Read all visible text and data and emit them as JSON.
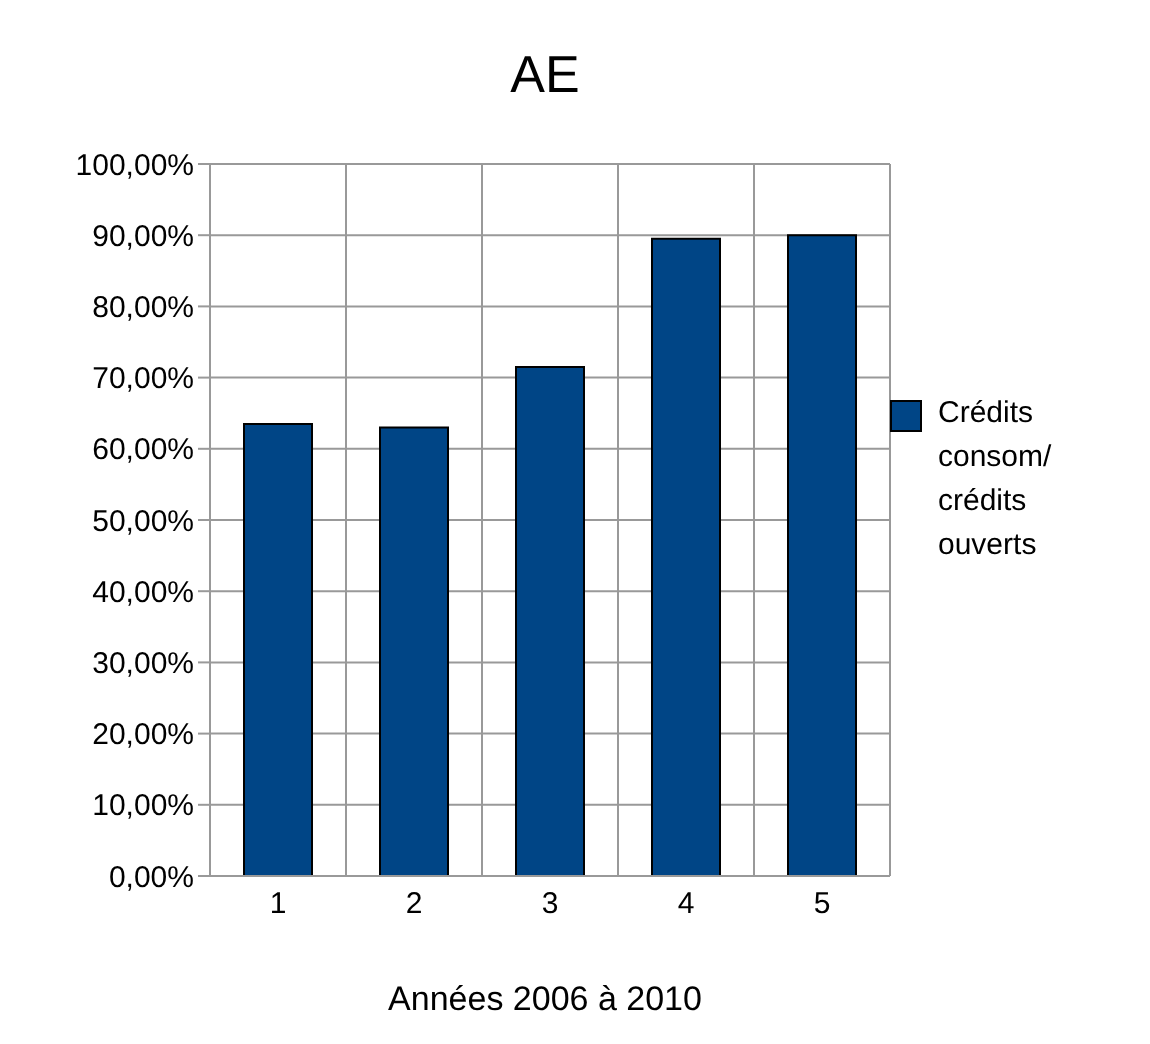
{
  "chart_data": {
    "type": "bar",
    "title": "AE",
    "xlabel": "Années 2006 à 2010",
    "categories": [
      "1",
      "2",
      "3",
      "4",
      "5"
    ],
    "series": [
      {
        "name": "Crédits consom/ crédits ouverts",
        "color": "#004586",
        "values": [
          63.5,
          63,
          71.5,
          89.5,
          90
        ]
      }
    ],
    "ylim": [
      0,
      100
    ],
    "yticks": [
      {
        "value": 0,
        "label": "0,00%"
      },
      {
        "value": 10,
        "label": "10,00%"
      },
      {
        "value": 20,
        "label": "20,00%"
      },
      {
        "value": 30,
        "label": "30,00%"
      },
      {
        "value": 40,
        "label": "40,00%"
      },
      {
        "value": 50,
        "label": "50,00%"
      },
      {
        "value": 60,
        "label": "60,00%"
      },
      {
        "value": 70,
        "label": "70,00%"
      },
      {
        "value": 80,
        "label": "80,00%"
      },
      {
        "value": 90,
        "label": "90,00%"
      },
      {
        "value": 100,
        "label": "100,00%"
      }
    ],
    "grid": true,
    "legend": "right"
  }
}
